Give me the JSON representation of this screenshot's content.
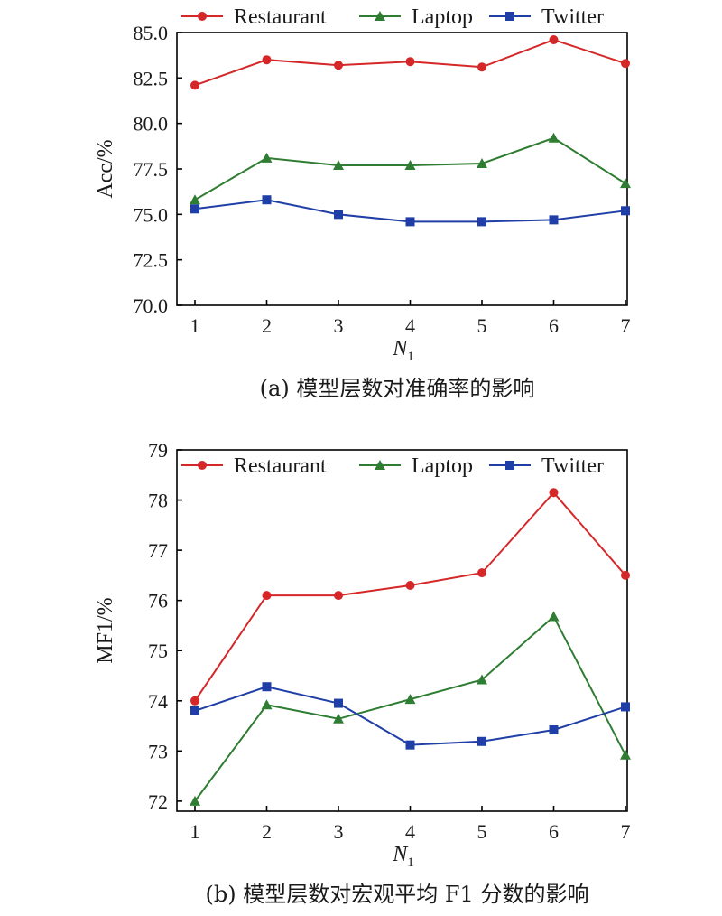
{
  "chart_data": [
    {
      "type": "line",
      "caption": "(a) 模型层数对准确率的影响",
      "xlabel_main": "N",
      "xlabel_sub": "1",
      "ylabel": "Acc/%",
      "categories": [
        "1",
        "2",
        "3",
        "4",
        "5",
        "6",
        "7"
      ],
      "x": [
        1,
        2,
        3,
        4,
        5,
        6,
        7
      ],
      "ylim": [
        70.0,
        85.0
      ],
      "yticks": [
        "70.0",
        "72.5",
        "75.0",
        "77.5",
        "80.0",
        "82.5",
        "85.0"
      ],
      "legend_position": "top",
      "grid": false,
      "series": [
        {
          "name": "Restaurant",
          "color": "#d62728",
          "marker": "circle",
          "values": [
            82.1,
            83.5,
            83.2,
            83.4,
            83.1,
            84.6,
            83.3
          ]
        },
        {
          "name": "Laptop",
          "color": "#2e7d32",
          "marker": "triangle",
          "values": [
            75.8,
            78.1,
            77.7,
            77.7,
            77.8,
            79.2,
            76.7
          ]
        },
        {
          "name": "Twitter",
          "color": "#1f3fa6",
          "marker": "square",
          "values": [
            75.3,
            75.8,
            75.0,
            74.6,
            74.6,
            74.7,
            75.2
          ]
        }
      ]
    },
    {
      "type": "line",
      "caption": "(b) 模型层数对宏观平均 F1 分数的影响",
      "xlabel_main": "N",
      "xlabel_sub": "1",
      "ylabel": "MF1/%",
      "categories": [
        "1",
        "2",
        "3",
        "4",
        "5",
        "6",
        "7"
      ],
      "x": [
        1,
        2,
        3,
        4,
        5,
        6,
        7
      ],
      "ylim": [
        71.8,
        79.0
      ],
      "yticks": [
        "72",
        "73",
        "74",
        "75",
        "76",
        "77",
        "78",
        "79"
      ],
      "legend_position": "top",
      "grid": false,
      "series": [
        {
          "name": "Restaurant",
          "color": "#d62728",
          "marker": "circle",
          "values": [
            74.0,
            76.1,
            76.1,
            76.3,
            76.55,
            78.15,
            76.5
          ]
        },
        {
          "name": "Laptop",
          "color": "#2e7d32",
          "marker": "triangle",
          "values": [
            72.0,
            73.92,
            73.64,
            74.03,
            74.42,
            75.68,
            72.92
          ]
        },
        {
          "name": "Twitter",
          "color": "#1f3fa6",
          "marker": "square",
          "values": [
            73.8,
            74.28,
            73.95,
            73.12,
            73.19,
            73.42,
            73.88
          ]
        }
      ]
    }
  ]
}
